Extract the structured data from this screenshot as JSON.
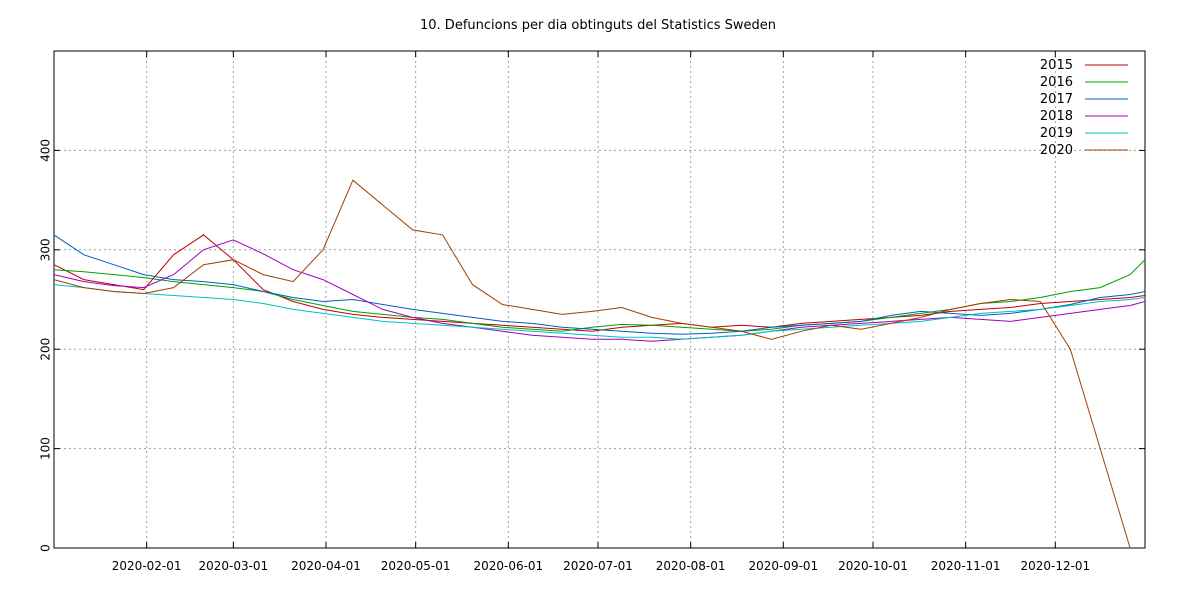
{
  "chart_data": {
    "type": "line",
    "title": "10. Defuncions per dia obtinguts del Statistics Sweden",
    "xlabel": "",
    "ylabel": "",
    "xlim": [
      "2020-01-01",
      "2020-12-31"
    ],
    "ylim": [
      0,
      500
    ],
    "x_ticks": [
      "2020-02-01",
      "2020-03-01",
      "2020-04-01",
      "2020-05-01",
      "2020-06-01",
      "2020-07-01",
      "2020-08-01",
      "2020-09-01",
      "2020-10-01",
      "2020-11-01",
      "2020-12-01"
    ],
    "y_ticks": [
      0,
      100,
      200,
      300,
      400
    ],
    "grid": true,
    "legend_position": "top-right",
    "x_points": [
      "2020-01-01",
      "2020-01-11",
      "2020-01-21",
      "2020-01-31",
      "2020-02-10",
      "2020-02-20",
      "2020-03-01",
      "2020-03-11",
      "2020-03-21",
      "2020-03-31",
      "2020-04-10",
      "2020-04-20",
      "2020-04-30",
      "2020-05-10",
      "2020-05-20",
      "2020-05-30",
      "2020-06-09",
      "2020-06-19",
      "2020-06-29",
      "2020-07-09",
      "2020-07-19",
      "2020-07-29",
      "2020-08-08",
      "2020-08-18",
      "2020-08-28",
      "2020-09-07",
      "2020-09-17",
      "2020-09-27",
      "2020-10-07",
      "2020-10-17",
      "2020-10-27",
      "2020-11-06",
      "2020-11-16",
      "2020-11-26",
      "2020-12-06",
      "2020-12-16",
      "2020-12-26",
      "2020-12-31"
    ],
    "series": [
      {
        "name": "2015",
        "color": "#c00000",
        "values": [
          285,
          270,
          265,
          260,
          295,
          315,
          290,
          260,
          248,
          240,
          235,
          232,
          230,
          228,
          226,
          224,
          222,
          220,
          218,
          222,
          224,
          226,
          222,
          224,
          222,
          226,
          228,
          230,
          232,
          234,
          238,
          240,
          242,
          246,
          248,
          250,
          252,
          254
        ]
      },
      {
        "name": "2016",
        "color": "#00a000",
        "values": [
          280,
          278,
          275,
          272,
          268,
          265,
          262,
          258,
          250,
          244,
          238,
          235,
          232,
          230,
          226,
          222,
          220,
          218,
          222,
          225,
          224,
          222,
          220,
          218,
          220,
          224,
          226,
          228,
          232,
          236,
          240,
          246,
          248,
          252,
          258,
          262,
          275,
          290
        ]
      },
      {
        "name": "2017",
        "color": "#0060c0",
        "values": [
          315,
          295,
          285,
          275,
          270,
          268,
          265,
          258,
          252,
          248,
          250,
          245,
          240,
          236,
          232,
          228,
          226,
          222,
          220,
          218,
          216,
          215,
          216,
          218,
          222,
          224,
          226,
          228,
          234,
          238,
          236,
          234,
          236,
          240,
          245,
          252,
          255,
          258
        ]
      },
      {
        "name": "2018",
        "color": "#a000c0",
        "values": [
          275,
          268,
          264,
          262,
          275,
          300,
          310,
          296,
          280,
          270,
          255,
          240,
          232,
          226,
          222,
          218,
          214,
          212,
          210,
          210,
          208,
          210,
          212,
          214,
          218,
          222,
          224,
          226,
          228,
          230,
          232,
          230,
          228,
          232,
          236,
          240,
          244,
          248
        ]
      },
      {
        "name": "2019",
        "color": "#00c0c0",
        "values": [
          265,
          262,
          258,
          256,
          254,
          252,
          250,
          246,
          240,
          236,
          232,
          228,
          226,
          224,
          222,
          220,
          218,
          216,
          214,
          212,
          212,
          210,
          212,
          214,
          218,
          220,
          222,
          224,
          226,
          228,
          232,
          236,
          238,
          240,
          244,
          248,
          250,
          252
        ]
      },
      {
        "name": "2020",
        "color": "#a04000",
        "values": [
          270,
          262,
          258,
          256,
          262,
          285,
          290,
          275,
          268,
          300,
          370,
          345,
          320,
          315,
          265,
          245,
          240,
          235,
          238,
          242,
          232,
          226,
          222,
          218,
          210,
          218,
          224,
          220,
          226,
          232,
          240,
          246,
          250,
          248,
          null,
          null,
          null,
          null
        ]
      },
      {
        "name": "",
        "color": "#a04000",
        "values": [
          null,
          null,
          null,
          null,
          null,
          null,
          null,
          null,
          null,
          null,
          null,
          null,
          null,
          null,
          null,
          null,
          null,
          null,
          null,
          null,
          null,
          null,
          null,
          null,
          null,
          null,
          null,
          null,
          null,
          null,
          null,
          null,
          null,
          248,
          200,
          100,
          0,
          null
        ]
      }
    ]
  }
}
